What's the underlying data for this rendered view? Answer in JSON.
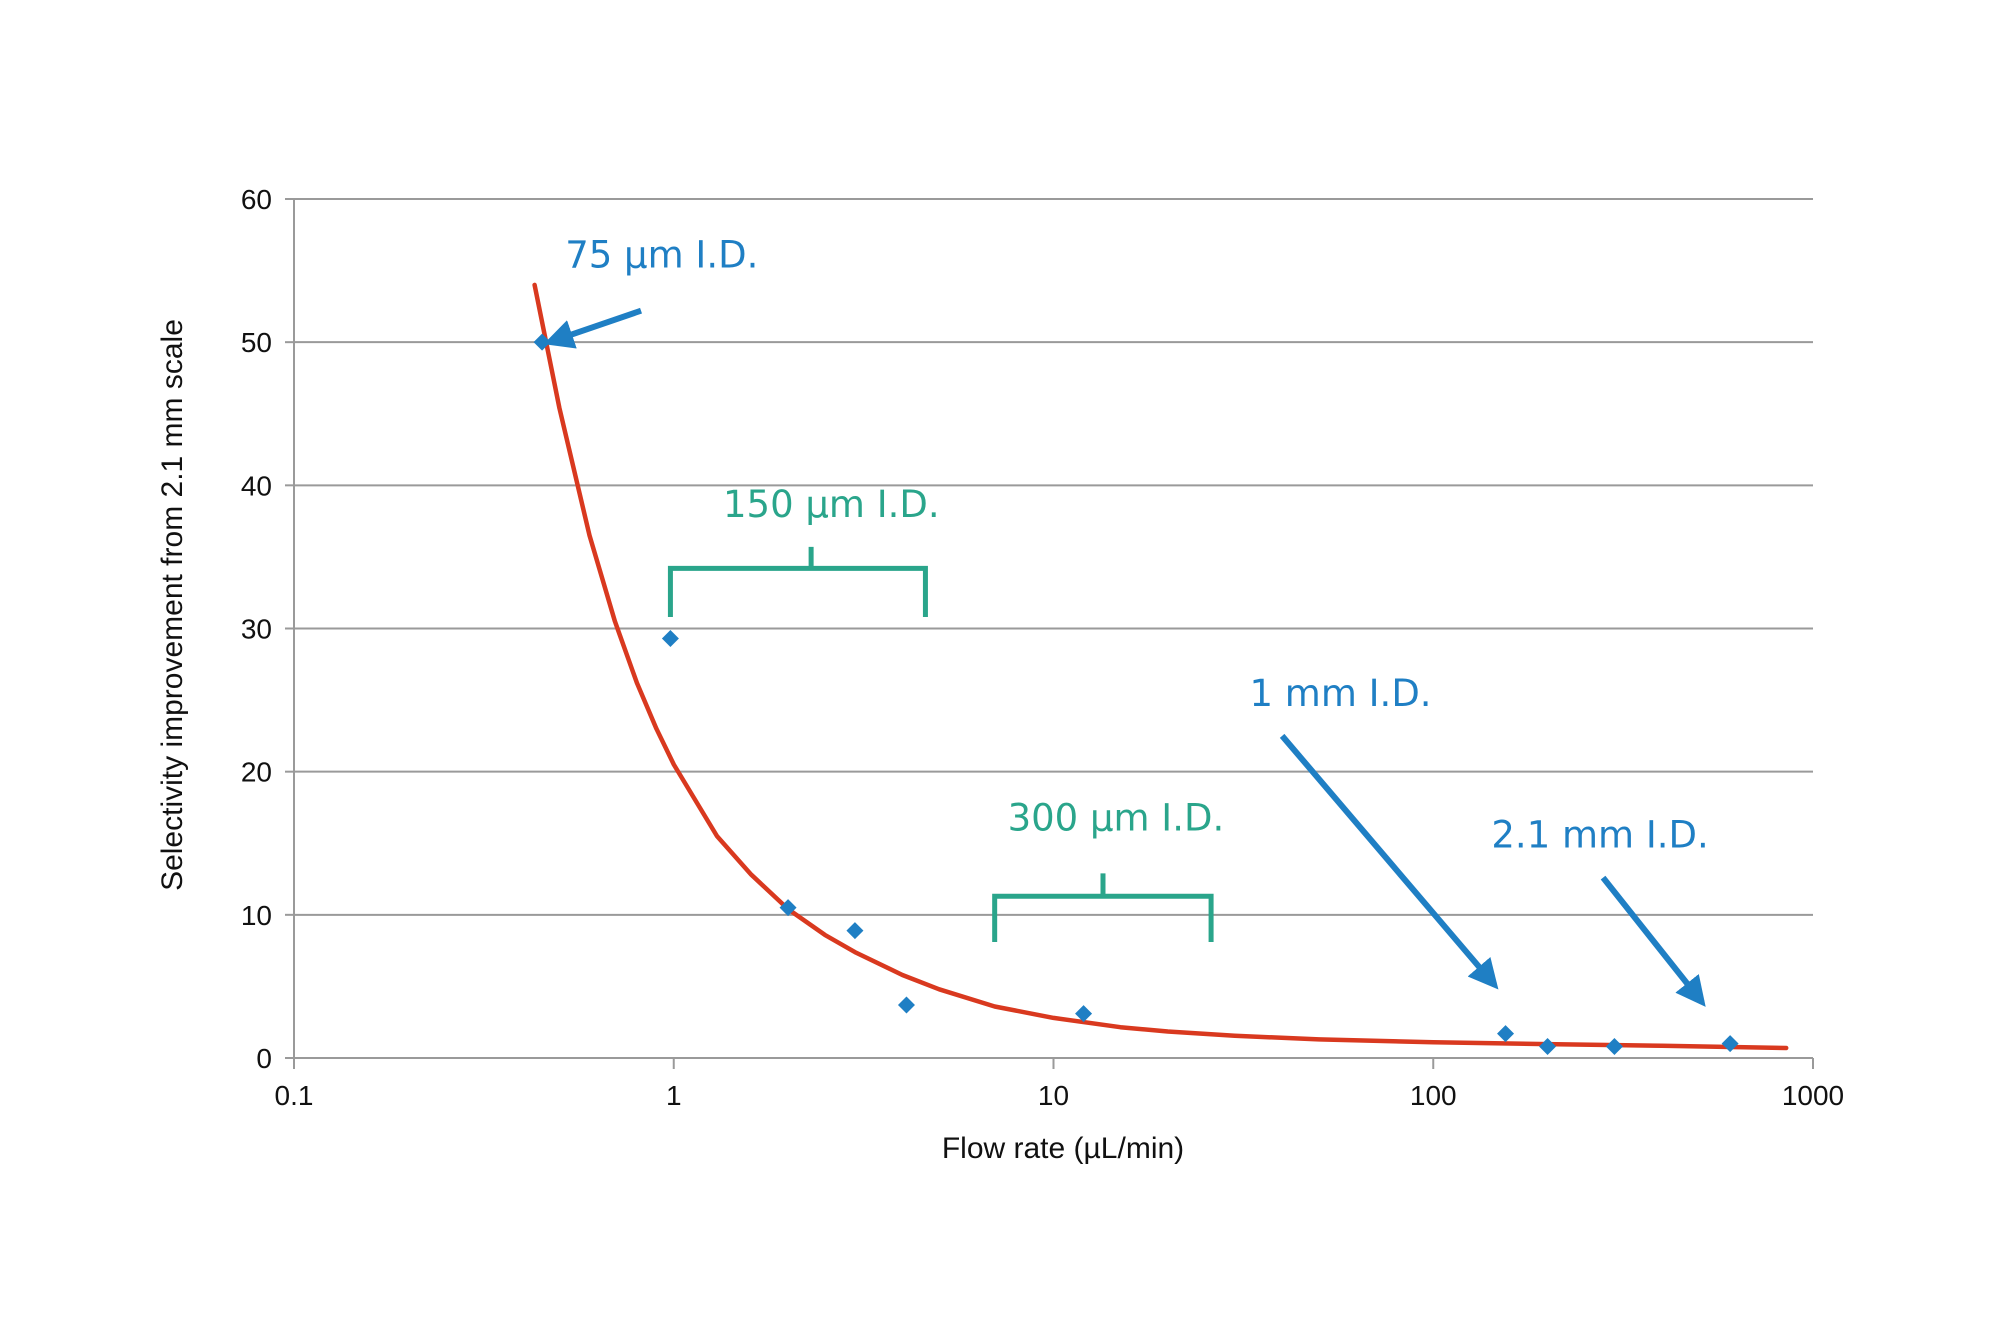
{
  "chart_data": {
    "type": "scatter",
    "title": "",
    "xlabel": "Flow rate (µL/min)",
    "ylabel": "Selectivity improvement from 2.1 mm scale",
    "x_scale": "log",
    "xlim": [
      0.1,
      1000
    ],
    "ylim": [
      0,
      60
    ],
    "x_ticks": [
      0.1,
      1,
      10,
      100,
      1000
    ],
    "x_tick_labels": [
      "0.1",
      "1",
      "10",
      "100",
      "1000"
    ],
    "y_ticks": [
      0,
      10,
      20,
      30,
      40,
      50,
      60
    ],
    "y_tick_labels": [
      "0",
      "10",
      "20",
      "30",
      "40",
      "50",
      "60"
    ],
    "grid": "horizontal",
    "legend": "none",
    "series": [
      {
        "type": "scatter",
        "marker": "diamond",
        "color": "#1f7fc4",
        "points": [
          {
            "x": 0.45,
            "y": 50
          },
          {
            "x": 0.98,
            "y": 29.3
          },
          {
            "x": 2.0,
            "y": 10.5
          },
          {
            "x": 3.0,
            "y": 8.9
          },
          {
            "x": 4.1,
            "y": 3.7
          },
          {
            "x": 12,
            "y": 3.1
          },
          {
            "x": 155,
            "y": 1.7
          },
          {
            "x": 200,
            "y": 0.8
          },
          {
            "x": 300,
            "y": 0.8
          },
          {
            "x": 605,
            "y": 1.0
          }
        ]
      },
      {
        "type": "line",
        "color": "#d9391f",
        "points": [
          {
            "x": 0.43,
            "y": 54
          },
          {
            "x": 0.5,
            "y": 45.4
          },
          {
            "x": 0.6,
            "y": 36.5
          },
          {
            "x": 0.7,
            "y": 30.5
          },
          {
            "x": 0.8,
            "y": 26.2
          },
          {
            "x": 0.9,
            "y": 23.0
          },
          {
            "x": 1,
            "y": 20.5
          },
          {
            "x": 1.3,
            "y": 15.5
          },
          {
            "x": 1.6,
            "y": 12.8
          },
          {
            "x": 2,
            "y": 10.4
          },
          {
            "x": 2.5,
            "y": 8.6
          },
          {
            "x": 3,
            "y": 7.4
          },
          {
            "x": 4,
            "y": 5.8
          },
          {
            "x": 5,
            "y": 4.8
          },
          {
            "x": 7,
            "y": 3.6
          },
          {
            "x": 10,
            "y": 2.8
          },
          {
            "x": 15,
            "y": 2.15
          },
          {
            "x": 20,
            "y": 1.85
          },
          {
            "x": 30,
            "y": 1.55
          },
          {
            "x": 50,
            "y": 1.3
          },
          {
            "x": 100,
            "y": 1.1
          },
          {
            "x": 200,
            "y": 0.97
          },
          {
            "x": 400,
            "y": 0.85
          },
          {
            "x": 850,
            "y": 0.7
          }
        ]
      }
    ],
    "annotations": [
      {
        "text": "75 µm I.D.",
        "kind": "arrow",
        "color": "#1f7fc4",
        "text_x": 0.93,
        "text_y": 55.2,
        "from_x": 0.82,
        "from_y": 52.2,
        "to_x": 0.47,
        "to_y": 50
      },
      {
        "text": "150 µm I.D.",
        "kind": "bracket",
        "color": "#2aa58b",
        "text_x": 2.6,
        "text_y": 37.8,
        "x_start": 0.98,
        "x_end": 4.6,
        "y": 34.2,
        "y_end": 30.8,
        "stem_x": 2.3,
        "stem_top": 35.7
      },
      {
        "text": "300 µm I.D.",
        "kind": "bracket",
        "color": "#2aa58b",
        "text_x": 14.6,
        "text_y": 15.9,
        "x_start": 7.0,
        "x_end": 26.0,
        "y": 11.3,
        "y_end": 8.1,
        "stem_x": 13.5,
        "stem_top": 12.9
      },
      {
        "text": "1 mm I.D.",
        "kind": "arrow",
        "color": "#1f7fc4",
        "text_x": 57,
        "text_y": 24.6,
        "from_x": 40,
        "from_y": 22.5,
        "to_x": 145,
        "to_y": 5.1
      },
      {
        "text": "2.1 mm I.D.",
        "kind": "arrow",
        "color": "#1f7fc4",
        "text_x": 275,
        "text_y": 14.7,
        "from_x": 280,
        "from_y": 12.6,
        "to_x": 510,
        "to_y": 3.9
      }
    ]
  }
}
